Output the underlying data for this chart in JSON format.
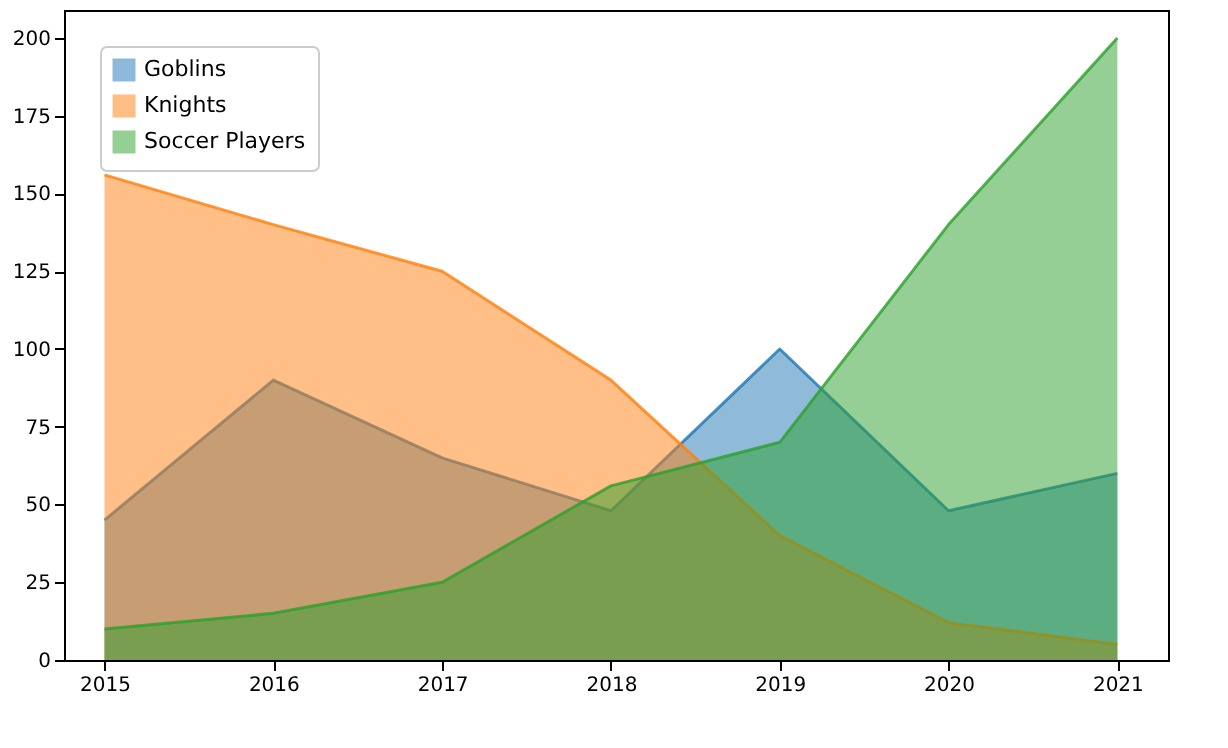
{
  "chart_data": {
    "type": "area",
    "x": [
      2015,
      2016,
      2017,
      2018,
      2019,
      2020,
      2021
    ],
    "series": [
      {
        "name": "Goblins",
        "color": "#1f77b4",
        "values": [
          45,
          90,
          65,
          48,
          100,
          48,
          60
        ]
      },
      {
        "name": "Knights",
        "color": "#ff7f0e",
        "values": [
          156,
          140,
          125,
          90,
          40,
          12,
          5
        ]
      },
      {
        "name": "Soccer Players",
        "color": "#2ca02c",
        "values": [
          10,
          15,
          25,
          56,
          70,
          140,
          200
        ]
      }
    ],
    "xlim": [
      2014.76,
      2021.3
    ],
    "xticks": [
      2015,
      2016,
      2017,
      2018,
      2019,
      2020,
      2021
    ],
    "ylim": [
      0,
      209
    ],
    "yticks": [
      0,
      25,
      50,
      75,
      100,
      125,
      150,
      175,
      200
    ],
    "grid": false,
    "legend": "top left"
  }
}
